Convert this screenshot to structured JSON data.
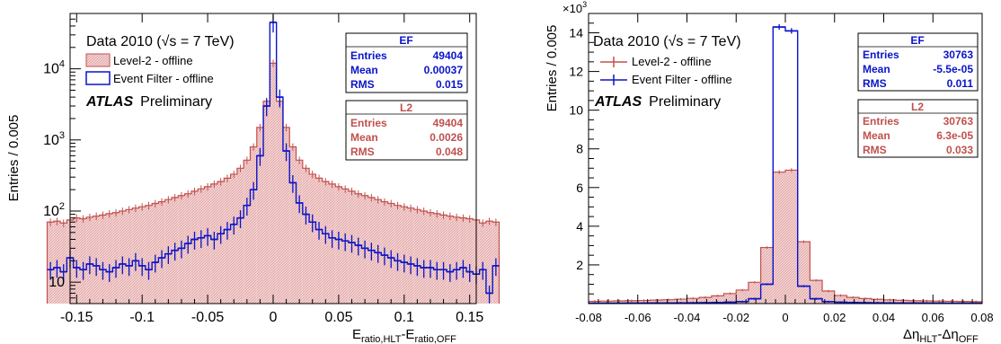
{
  "colors": {
    "level2": "#c0504d",
    "level2_fill": "#f3d2d2",
    "ef": "#0a14c8",
    "axis": "#000000"
  },
  "charts": [
    {
      "id": "left",
      "ylabel": "Entries / 0.005",
      "xlabel_main": "E",
      "xlabel_sub1": "ratio,HLT",
      "xlabel_mid": "-E",
      "xlabel_sub2": "ratio,OFF",
      "legend": {
        "title": "Data 2010 (√s = 7 TeV)",
        "level2": "Level-2 - offline",
        "ef": "Event Filter - offline",
        "atlas": "ATLAS",
        "prelim": "Preliminary"
      },
      "stats_ef": {
        "title": "EF",
        "rows": [
          {
            "k": "Entries",
            "v": "49404"
          },
          {
            "k": "Mean",
            "v": "0.00037"
          },
          {
            "k": "RMS",
            "v": "0.015"
          }
        ]
      },
      "stats_l2": {
        "title": "L2",
        "rows": [
          {
            "k": "Entries",
            "v": "49404"
          },
          {
            "k": "Mean",
            "v": "0.0026"
          },
          {
            "k": "RMS",
            "v": "0.048"
          }
        ]
      },
      "xticks": [
        "-0.15",
        "-0.1",
        "-0.05",
        "0",
        "0.05",
        "0.1",
        "0.15"
      ],
      "yticks": [
        "10",
        "10",
        "10",
        "10"
      ],
      "yticks_exp": [
        "",
        "2",
        "3",
        "4"
      ]
    },
    {
      "id": "right",
      "ylabel": "Entries / 0.005",
      "multiplier_base": "×10",
      "multiplier_exp": "3",
      "xlabel_main": "Δη",
      "xlabel_sub1": "HLT",
      "xlabel_mid": "-Δη",
      "xlabel_sub2": "OFF",
      "legend": {
        "title": "Data 2010 (√s = 7 TeV)",
        "level2": "Level-2 - offline",
        "ef": "Event Filter - offline",
        "atlas": "ATLAS",
        "prelim": "Preliminary"
      },
      "stats_ef": {
        "title": "EF",
        "rows": [
          {
            "k": "Entries",
            "v": "30763"
          },
          {
            "k": "Mean",
            "v": "-5.5e-05"
          },
          {
            "k": "RMS",
            "v": "0.011"
          }
        ]
      },
      "stats_l2": {
        "title": "L2",
        "rows": [
          {
            "k": "Entries",
            "v": "30763"
          },
          {
            "k": "Mean",
            "v": "6.3e-05"
          },
          {
            "k": "RMS",
            "v": "0.033"
          }
        ]
      },
      "xticks": [
        "-0.08",
        "-0.06",
        "-0.04",
        "-0.02",
        "0",
        "0.02",
        "0.04",
        "0.06",
        "0.08"
      ],
      "yticks": [
        "2",
        "4",
        "6",
        "8",
        "10",
        "12",
        "14"
      ]
    }
  ],
  "chart_data": [
    {
      "type": "histogram",
      "scale": "log",
      "xlim": [
        -0.155,
        0.155
      ],
      "ylim": [
        5,
        60000
      ],
      "bin_width": 0.005,
      "x_ticks": [
        -0.15,
        -0.1,
        -0.05,
        0,
        0.05,
        0.1,
        0.15
      ],
      "y_ticks": [
        10,
        100,
        1000,
        10000
      ],
      "series": [
        {
          "name": "Level-2 - offline",
          "style": "filled",
          "values": [
            70,
            72,
            68,
            75,
            80,
            78,
            82,
            85,
            88,
            92,
            95,
            100,
            105,
            110,
            115,
            120,
            128,
            135,
            145,
            155,
            165,
            175,
            190,
            205,
            220,
            240,
            260,
            290,
            330,
            400,
            520,
            800,
            1500,
            3500,
            12000,
            3500,
            1500,
            800,
            520,
            400,
            330,
            290,
            260,
            240,
            220,
            205,
            190,
            175,
            165,
            155,
            145,
            135,
            128,
            120,
            115,
            110,
            105,
            100,
            95,
            92,
            88,
            85,
            82,
            80,
            78,
            75,
            68,
            72,
            70
          ]
        },
        {
          "name": "Event Filter - offline",
          "style": "errorbars",
          "values": [
            15,
            16,
            14,
            22,
            16,
            15,
            18,
            17,
            15,
            14,
            16,
            18,
            17,
            20,
            17,
            15,
            19,
            22,
            25,
            28,
            30,
            35,
            40,
            42,
            45,
            40,
            48,
            55,
            65,
            80,
            120,
            200,
            600,
            3000,
            45000,
            4000,
            700,
            250,
            130,
            90,
            70,
            55,
            48,
            42,
            40,
            38,
            36,
            33,
            30,
            28,
            26,
            24,
            22,
            20,
            19,
            18,
            17,
            16,
            16,
            15,
            15,
            14,
            15,
            16,
            14,
            13,
            15,
            7,
            17
          ]
        }
      ]
    },
    {
      "type": "histogram",
      "scale": "linear",
      "xlim": [
        -0.08,
        0.08
      ],
      "ylim": [
        0,
        15000
      ],
      "bin_width": 0.005,
      "x_ticks": [
        -0.08,
        -0.06,
        -0.04,
        -0.02,
        0,
        0.02,
        0.04,
        0.06,
        0.08
      ],
      "y_ticks": [
        2000,
        4000,
        6000,
        8000,
        10000,
        12000,
        14000
      ],
      "series": [
        {
          "name": "Level-2 - offline",
          "style": "filled",
          "values": [
            120,
            130,
            140,
            150,
            160,
            180,
            200,
            230,
            270,
            320,
            400,
            520,
            700,
            1100,
            2900,
            6800,
            6900,
            3200,
            1200,
            650,
            420,
            320,
            260,
            220,
            190,
            170,
            150,
            140,
            130,
            120,
            110,
            100
          ]
        },
        {
          "name": "Event Filter - offline",
          "style": "errorbars",
          "values": [
            20,
            20,
            20,
            25,
            25,
            30,
            30,
            35,
            40,
            45,
            55,
            70,
            100,
            250,
            1000,
            14300,
            14100,
            900,
            250,
            100,
            70,
            55,
            45,
            40,
            35,
            30,
            30,
            25,
            25,
            20,
            20,
            20
          ]
        }
      ]
    }
  ]
}
